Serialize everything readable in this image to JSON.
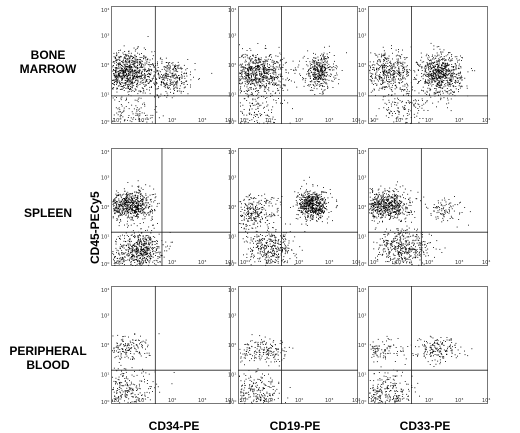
{
  "rows": [
    {
      "label": "BONE\nMARROW"
    },
    {
      "label": "SPLEEN"
    },
    {
      "label": "PERIPHERAL\nBLOOD"
    }
  ],
  "y_axis_label": "CD45-PECy5",
  "x_axis_labels": [
    "CD34-PE",
    "CD19-PE",
    "CD33-PE"
  ],
  "chart_data": {
    "type": "scatter",
    "axis_scale": "log",
    "xlim": [
      1,
      10000
    ],
    "ylim": [
      1,
      10000
    ],
    "tick_labels": [
      "10⁰",
      "10¹",
      "10²",
      "10³",
      "10⁴"
    ],
    "grid": false,
    "panels": [
      {
        "row": "BONE MARROW",
        "marker": "CD34-PE",
        "x_gate": 30,
        "y_gate": 9,
        "clusters": [
          {
            "cx": 3,
            "cy": 60,
            "sx": 0.45,
            "sy": 0.35,
            "n": 900
          },
          {
            "cx": 80,
            "cy": 40,
            "sx": 0.45,
            "sy": 0.3,
            "n": 350
          },
          {
            "cx": 4,
            "cy": 2,
            "sx": 0.5,
            "sy": 0.45,
            "n": 180
          }
        ]
      },
      {
        "row": "BONE MARROW",
        "marker": "CD19-PE",
        "x_gate": 28,
        "y_gate": 9,
        "clusters": [
          {
            "cx": 4,
            "cy": 55,
            "sx": 0.5,
            "sy": 0.35,
            "n": 800
          },
          {
            "cx": 500,
            "cy": 60,
            "sx": 0.25,
            "sy": 0.3,
            "n": 400
          },
          {
            "cx": 4,
            "cy": 2,
            "sx": 0.5,
            "sy": 0.45,
            "n": 160
          }
        ]
      },
      {
        "row": "BONE MARROW",
        "marker": "CD33-PE",
        "x_gate": 28,
        "y_gate": 9,
        "clusters": [
          {
            "cx": 4,
            "cy": 60,
            "sx": 0.45,
            "sy": 0.3,
            "n": 450
          },
          {
            "cx": 250,
            "cy": 50,
            "sx": 0.35,
            "sy": 0.35,
            "n": 750
          },
          {
            "cx": 15,
            "cy": 3,
            "sx": 0.4,
            "sy": 0.5,
            "n": 180
          }
        ]
      },
      {
        "row": "SPLEEN",
        "marker": "CD34-PE",
        "x_gate": 50,
        "y_gate": 14,
        "clusters": [
          {
            "cx": 4,
            "cy": 120,
            "sx": 0.4,
            "sy": 0.25,
            "n": 700
          },
          {
            "cx": 10,
            "cy": 4,
            "sx": 0.35,
            "sy": 0.3,
            "n": 500
          },
          {
            "cx": 2,
            "cy": 1.5,
            "sx": 0.4,
            "sy": 0.3,
            "n": 120
          }
        ]
      },
      {
        "row": "SPLEEN",
        "marker": "CD19-PE",
        "x_gate": 28,
        "y_gate": 14,
        "clusters": [
          {
            "cx": 3,
            "cy": 70,
            "sx": 0.45,
            "sy": 0.3,
            "n": 300
          },
          {
            "cx": 300,
            "cy": 120,
            "sx": 0.25,
            "sy": 0.25,
            "n": 600
          },
          {
            "cx": 12,
            "cy": 4,
            "sx": 0.4,
            "sy": 0.3,
            "n": 350
          }
        ]
      },
      {
        "row": "SPLEEN",
        "marker": "CD33-PE",
        "x_gate": 60,
        "y_gate": 14,
        "clusters": [
          {
            "cx": 4,
            "cy": 120,
            "sx": 0.4,
            "sy": 0.25,
            "n": 650
          },
          {
            "cx": 400,
            "cy": 80,
            "sx": 0.3,
            "sy": 0.2,
            "n": 90
          },
          {
            "cx": 15,
            "cy": 4,
            "sx": 0.45,
            "sy": 0.35,
            "n": 450
          }
        ]
      },
      {
        "row": "PERIPHERAL BLOOD",
        "marker": "CD34-PE",
        "x_gate": 30,
        "y_gate": 14,
        "clusters": [
          {
            "cx": 3,
            "cy": 80,
            "sx": 0.4,
            "sy": 0.2,
            "n": 160
          },
          {
            "cx": 3,
            "cy": 2.5,
            "sx": 0.5,
            "sy": 0.4,
            "n": 280
          }
        ]
      },
      {
        "row": "PERIPHERAL BLOOD",
        "marker": "CD19-PE",
        "x_gate": 28,
        "y_gate": 14,
        "clusters": [
          {
            "cx": 8,
            "cy": 60,
            "sx": 0.45,
            "sy": 0.2,
            "n": 180
          },
          {
            "cx": 3,
            "cy": 2.5,
            "sx": 0.45,
            "sy": 0.4,
            "n": 300
          }
        ]
      },
      {
        "row": "PERIPHERAL BLOOD",
        "marker": "CD33-PE",
        "x_gate": 28,
        "y_gate": 14,
        "clusters": [
          {
            "cx": 3,
            "cy": 70,
            "sx": 0.35,
            "sy": 0.2,
            "n": 100
          },
          {
            "cx": 200,
            "cy": 70,
            "sx": 0.4,
            "sy": 0.2,
            "n": 180
          },
          {
            "cx": 4,
            "cy": 2.5,
            "sx": 0.45,
            "sy": 0.4,
            "n": 280
          }
        ]
      }
    ]
  }
}
